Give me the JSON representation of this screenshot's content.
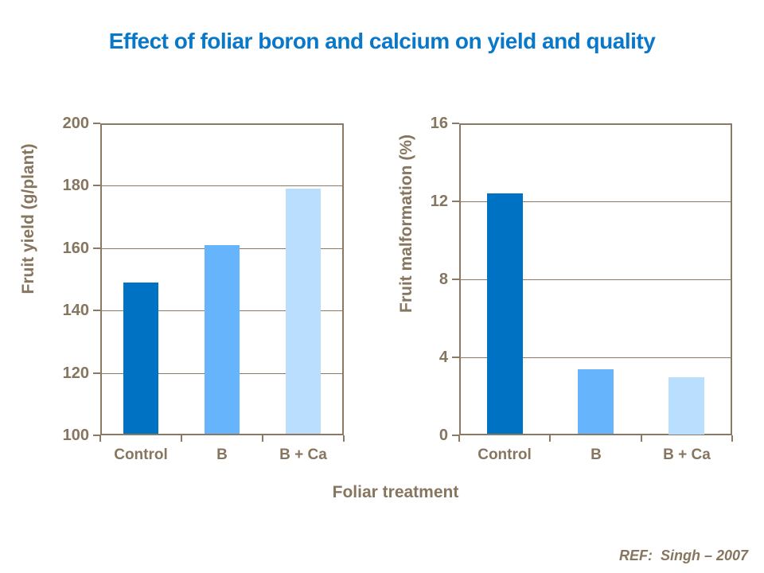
{
  "title": "Effect of foliar boron and calcium on yield and quality",
  "shared_xlabel": "Foliar treatment",
  "footer": {
    "ref": "REF:  Singh – 2007"
  },
  "colors": {
    "title_blue": "#0a78c8",
    "axis_brown": "#8a7a64",
    "text_brown": "#87765f",
    "bar_dark_blue": "#0072c3",
    "bar_medium_blue": "#66b5fc",
    "bar_light_blue": "#b9defe"
  },
  "chart_data": [
    {
      "type": "bar",
      "title": "",
      "ylabel": "Fruit yield (g/plant)",
      "xlabel": "Foliar treatment",
      "categories": [
        "Control",
        "B",
        "B + Ca"
      ],
      "values": [
        149,
        161,
        179
      ],
      "ylim": [
        100,
        200
      ],
      "yticks": [
        100,
        120,
        140,
        160,
        180,
        200
      ],
      "grid": true,
      "legend_position": "none",
      "bar_colors": [
        "#0072c3",
        "#66b5fc",
        "#b9defe"
      ]
    },
    {
      "type": "bar",
      "title": "",
      "ylabel": "Fruit malformation (%)",
      "xlabel": "Foliar treatment",
      "categories": [
        "Control",
        "B",
        "B + Ca"
      ],
      "values": [
        12.4,
        3.4,
        3.0
      ],
      "ylim": [
        0,
        16
      ],
      "yticks": [
        0,
        4,
        8,
        12,
        16
      ],
      "grid": true,
      "legend_position": "none",
      "bar_colors": [
        "#0072c3",
        "#66b5fc",
        "#b9defe"
      ]
    }
  ]
}
